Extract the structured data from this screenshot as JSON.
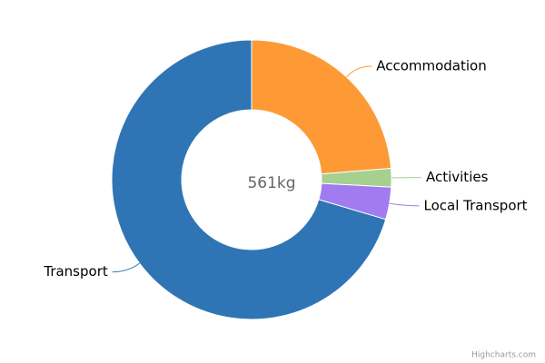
{
  "chart_data": {
    "type": "pie",
    "center_label": "561kg",
    "credit": "Highcharts.com",
    "categories": [
      "Accommodation",
      "Activities",
      "Local Transport",
      "Transport"
    ],
    "values": [
      133,
      12,
      21,
      395
    ],
    "colors": [
      "#fd9a36",
      "#a6d08e",
      "#a07cf0",
      "#2f75b5"
    ]
  }
}
